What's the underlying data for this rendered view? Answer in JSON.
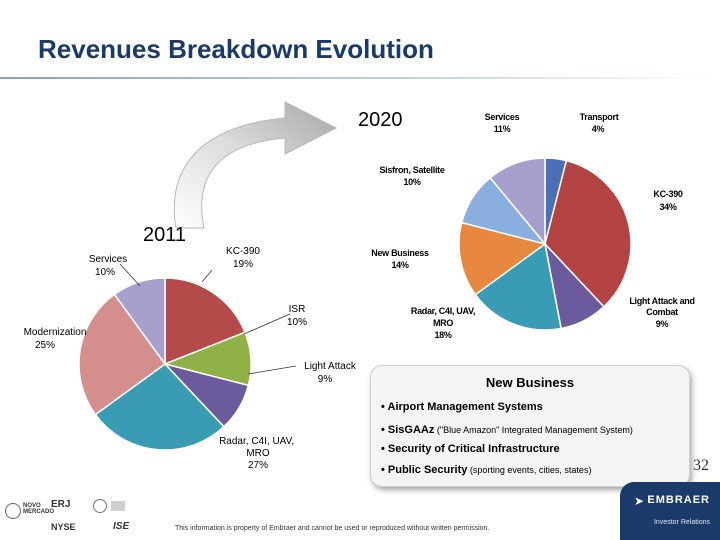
{
  "page": {
    "title": "Revenues Breakdown Evolution",
    "page_number": "32",
    "disclaimer": "This information is property of Embraer and cannot be used or reproduced without written permission.",
    "brand": "EMBRAER",
    "brand_sub": "Investor Relations",
    "logos": [
      "NOVO MERCADO",
      "ERJ",
      "NYSE",
      "ISE"
    ]
  },
  "chart_data": [
    {
      "type": "pie",
      "title": "2011",
      "slices": [
        {
          "label": "KC-390",
          "value_label": "19%",
          "value": 19,
          "color": "#b44a4a"
        },
        {
          "label": "ISR",
          "value_label": "10%",
          "value": 10,
          "color": "#8fb044"
        },
        {
          "label": "Light Attack",
          "value_label": "9%",
          "value": 9,
          "color": "#6b5a9c"
        },
        {
          "label": "Radar, C4I, UAV, MRO",
          "value_label": "27%",
          "value": 27,
          "color": "#3a9cb4"
        },
        {
          "label": "Modernization",
          "value_label": "25%",
          "value": 25,
          "color": "#d48e8e"
        },
        {
          "label": "Services",
          "value_label": "10%",
          "value": 10,
          "color": "#a8a0cc"
        }
      ]
    },
    {
      "type": "pie",
      "title": "2020",
      "slices": [
        {
          "label": "Transport",
          "value_label": "4%",
          "value": 4,
          "color": "#4a6fb4"
        },
        {
          "label": "KC-390",
          "value_label": "34%",
          "value": 34,
          "color": "#b44444"
        },
        {
          "label": "Light Attack and Combat",
          "value_label": "9%",
          "value": 9,
          "color": "#6b5a9c"
        },
        {
          "label": "Radar, C4I, UAV, MRO",
          "value_label": "18%",
          "value": 18,
          "color": "#3a9cb4"
        },
        {
          "label": "New Business",
          "value_label": "14%",
          "value": 14,
          "color": "#e88840"
        },
        {
          "label": "Sisfron, Satellite",
          "value_label": "10%",
          "value": 10,
          "color": "#8aaee0"
        },
        {
          "label": "Services",
          "value_label": "11%",
          "value": 11,
          "color": "#a8a0cc"
        }
      ]
    }
  ],
  "new_business": {
    "title": "New Business",
    "items": [
      {
        "main": "• Airport Management Systems",
        "detail": ""
      },
      {
        "main": "• SisGAAz",
        "detail": " (\"Blue Amazon\" Integrated Management System)"
      },
      {
        "main": "• Security of Critical Infrastructure",
        "detail": ""
      },
      {
        "main": "• Public Security",
        "detail": " (sporting events, cities, states)"
      }
    ]
  }
}
